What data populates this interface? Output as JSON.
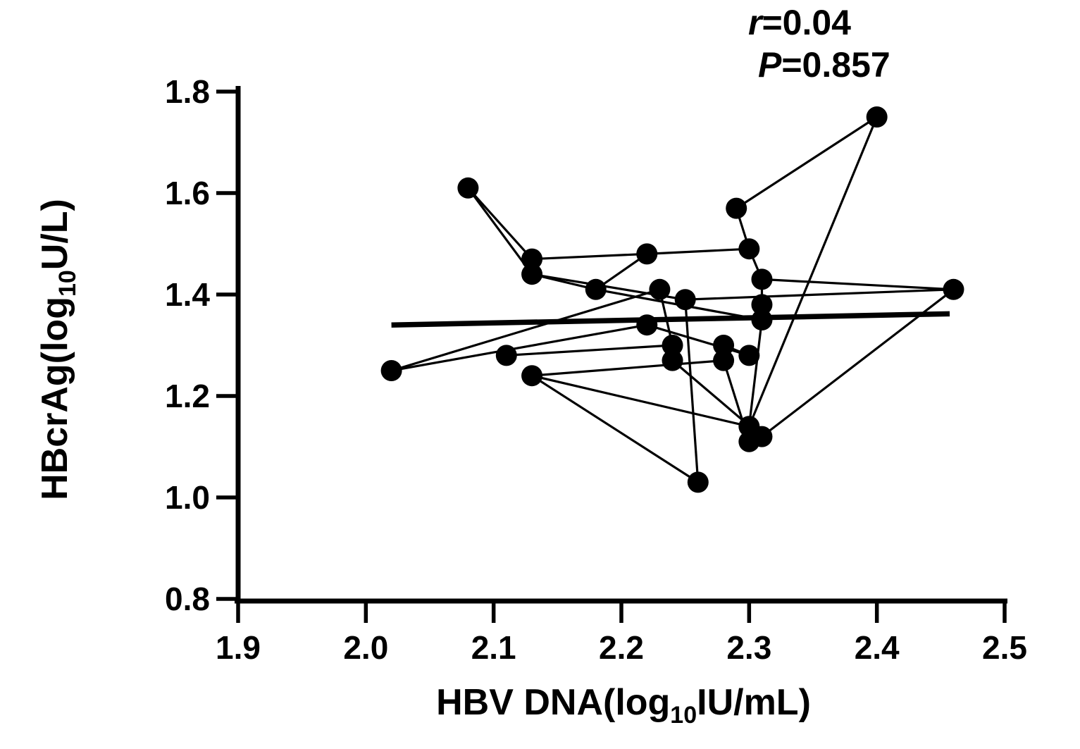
{
  "figure": {
    "annotation": {
      "line1_var": "r",
      "line1_rest": "=0.04",
      "line2_var": "P",
      "line2_rest": "=0.857"
    },
    "x_axis_title": {
      "prefix": "HBV DNA(log",
      "subscript": "10",
      "suffix": "IU/mL)"
    },
    "y_axis_title": {
      "prefix": "HBcrAg(log",
      "subscript": "10",
      "suffix": "U/L)"
    }
  },
  "colors": {
    "foreground": "#000000",
    "background": "#ffffff"
  },
  "chart_data": {
    "type": "scatter",
    "title": "",
    "xlabel": "HBV DNA(log10 IU/mL)",
    "ylabel": "HBcrAg(log10 U/L)",
    "xlim": [
      1.9,
      2.5
    ],
    "ylim": [
      0.8,
      1.8
    ],
    "grid": false,
    "legend": "none",
    "x_tick_values": [
      1.9,
      2.0,
      2.1,
      2.2,
      2.3,
      2.4,
      2.5
    ],
    "x_tick_labels": [
      "1.9",
      "2.0",
      "2.1",
      "2.2",
      "2.3",
      "2.4",
      "2.5"
    ],
    "y_tick_values": [
      1.8,
      1.6,
      1.4,
      1.2,
      1.0,
      0.8
    ],
    "y_tick_labels": [
      "1.8",
      "1.6",
      "1.4",
      "1.2",
      "1.0",
      "0.8"
    ],
    "annotation": {
      "r": "0.04",
      "P": "0.857"
    },
    "points": [
      [
        2.08,
        1.61
      ],
      [
        2.13,
        1.47
      ],
      [
        2.13,
        1.44
      ],
      [
        2.02,
        1.25
      ],
      [
        2.11,
        1.28
      ],
      [
        2.13,
        1.24
      ],
      [
        2.18,
        1.41
      ],
      [
        2.22,
        1.48
      ],
      [
        2.23,
        1.41
      ],
      [
        2.25,
        1.39
      ],
      [
        2.22,
        1.34
      ],
      [
        2.29,
        1.57
      ],
      [
        2.3,
        1.49
      ],
      [
        2.31,
        1.43
      ],
      [
        2.31,
        1.38
      ],
      [
        2.31,
        1.35
      ],
      [
        2.24,
        1.3
      ],
      [
        2.24,
        1.27
      ],
      [
        2.28,
        1.3
      ],
      [
        2.28,
        1.27
      ],
      [
        2.3,
        1.28
      ],
      [
        2.3,
        1.14
      ],
      [
        2.31,
        1.12
      ],
      [
        2.3,
        1.11
      ],
      [
        2.26,
        1.03
      ],
      [
        2.4,
        1.75
      ],
      [
        2.46,
        1.41
      ]
    ],
    "connected_segments": [
      [
        0,
        1
      ],
      [
        0,
        2
      ],
      [
        1,
        7
      ],
      [
        2,
        6
      ],
      [
        2,
        9
      ],
      [
        3,
        8
      ],
      [
        3,
        10
      ],
      [
        4,
        16
      ],
      [
        5,
        19
      ],
      [
        5,
        21
      ],
      [
        5,
        24
      ],
      [
        6,
        7
      ],
      [
        6,
        15
      ],
      [
        7,
        12
      ],
      [
        8,
        16
      ],
      [
        9,
        24
      ],
      [
        9,
        26
      ],
      [
        10,
        20
      ],
      [
        11,
        12
      ],
      [
        11,
        25
      ],
      [
        12,
        13
      ],
      [
        13,
        14
      ],
      [
        14,
        15
      ],
      [
        13,
        26
      ],
      [
        15,
        21
      ],
      [
        16,
        17
      ],
      [
        17,
        22
      ],
      [
        18,
        19
      ],
      [
        18,
        20
      ],
      [
        19,
        23
      ],
      [
        21,
        25
      ],
      [
        22,
        26
      ]
    ],
    "trend_line": {
      "x1": 2.02,
      "y1": 1.34,
      "x2": 2.457,
      "y2": 1.362
    }
  }
}
